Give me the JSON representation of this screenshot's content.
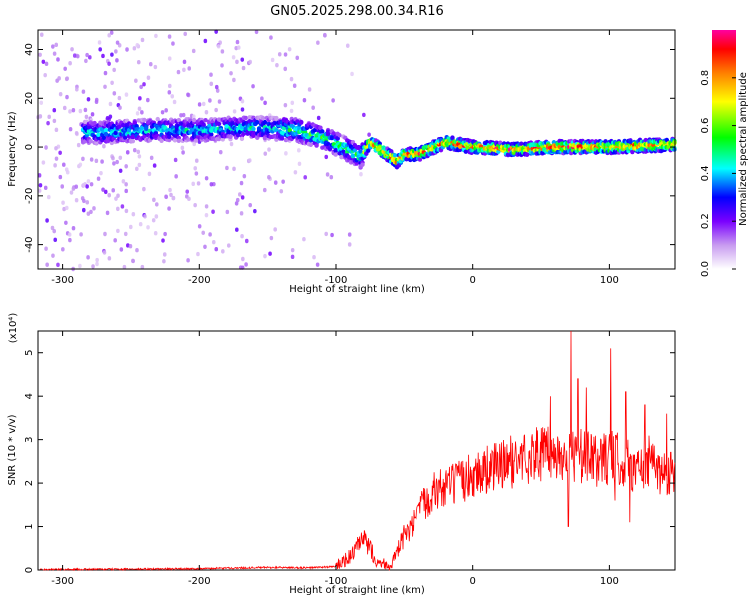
{
  "title": "GN05.2025.298.00.34.R16",
  "chart_data": [
    {
      "type": "heatmap",
      "xlabel": "Height of straight line (km)",
      "ylabel": "Frequency (Hz)",
      "xlim": [
        -318,
        148
      ],
      "ylim": [
        -50,
        48
      ],
      "xticks": [
        -300,
        -200,
        -100,
        0,
        100
      ],
      "yticks": [
        -40,
        -20,
        0,
        20,
        40
      ],
      "colorbar": {
        "label": "Normalized spectral amplitude",
        "range": [
          0.0,
          1.0
        ],
        "ticks": [
          0.0,
          0.2,
          0.4,
          0.6,
          0.8
        ],
        "tick_labels": [
          "0.0",
          "0.2",
          "0.4",
          "0.6",
          "0.8"
        ],
        "colormap": [
          "#ffffff",
          "#c89bf0",
          "#7a00ff",
          "#0000ff",
          "#00ffff",
          "#00ff00",
          "#ffff00",
          "#ff7f00",
          "#ff0000",
          "#ff00a0"
        ]
      },
      "ridge": [
        {
          "x": -270,
          "f": 6
        },
        {
          "x": -230,
          "f": 7
        },
        {
          "x": -200,
          "f": 7
        },
        {
          "x": -160,
          "f": 8
        },
        {
          "x": -130,
          "f": 7
        },
        {
          "x": -110,
          "f": 4
        },
        {
          "x": -95,
          "f": 0
        },
        {
          "x": -82,
          "f": -4
        },
        {
          "x": -75,
          "f": 2
        },
        {
          "x": -65,
          "f": -2
        },
        {
          "x": -55,
          "f": -6
        },
        {
          "x": -50,
          "f": -3
        },
        {
          "x": -40,
          "f": -3
        },
        {
          "x": -20,
          "f": 2
        },
        {
          "x": 0,
          "f": 0
        },
        {
          "x": 30,
          "f": -1
        },
        {
          "x": 60,
          "f": 0
        },
        {
          "x": 100,
          "f": 0
        },
        {
          "x": 148,
          "f": 1
        }
      ],
      "grid": false
    },
    {
      "type": "line",
      "xlabel": "Height of straight line (km)",
      "ylabel": "SNR (10 * v/v)",
      "multiplier": "(x10⁴)",
      "xlim": [
        -318,
        148
      ],
      "ylim": [
        0,
        5.5
      ],
      "xticks": [
        -300,
        -200,
        -100,
        0,
        100
      ],
      "yticks": [
        0,
        1,
        2,
        3,
        4,
        5
      ],
      "series": [
        {
          "color": "#ff0000",
          "points": [
            [
              -318,
              0.01
            ],
            [
              -250,
              0.02
            ],
            [
              -200,
              0.03
            ],
            [
              -150,
              0.06
            ],
            [
              -120,
              0.05
            ],
            [
              -100,
              0.08
            ],
            [
              -90,
              0.3
            ],
            [
              -80,
              0.7
            ],
            [
              -75,
              0.5
            ],
            [
              -70,
              0.2
            ],
            [
              -60,
              0.1
            ],
            [
              -55,
              0.4
            ],
            [
              -50,
              0.8
            ],
            [
              -45,
              0.9
            ],
            [
              -40,
              1.3
            ],
            [
              -30,
              1.8
            ],
            [
              -20,
              1.9
            ],
            [
              -10,
              2.0
            ],
            [
              0,
              2.2
            ],
            [
              10,
              2.3
            ],
            [
              20,
              2.4
            ],
            [
              30,
              2.5
            ],
            [
              40,
              2.6
            ],
            [
              50,
              2.7
            ],
            [
              60,
              2.6
            ],
            [
              70,
              2.7
            ],
            [
              80,
              2.6
            ],
            [
              90,
              2.5
            ],
            [
              100,
              2.6
            ],
            [
              110,
              2.5
            ],
            [
              120,
              2.3
            ],
            [
              130,
              2.5
            ],
            [
              140,
              2.2
            ],
            [
              148,
              2.4
            ]
          ],
          "spikes": [
            {
              "x": 57,
              "y": 4.0
            },
            {
              "x": 72,
              "y": 5.5
            },
            {
              "x": 77,
              "y": 4.4
            },
            {
              "x": 83,
              "y": 4.2
            },
            {
              "x": 101,
              "y": 5.1
            },
            {
              "x": 112,
              "y": 4.1
            },
            {
              "x": 126,
              "y": 3.8
            },
            {
              "x": 142,
              "y": 3.6
            },
            {
              "x": 115,
              "y": 1.1
            },
            {
              "x": 70,
              "y": 1.0
            },
            {
              "x": 104,
              "y": 1.6
            }
          ]
        }
      ],
      "grid": false
    }
  ]
}
